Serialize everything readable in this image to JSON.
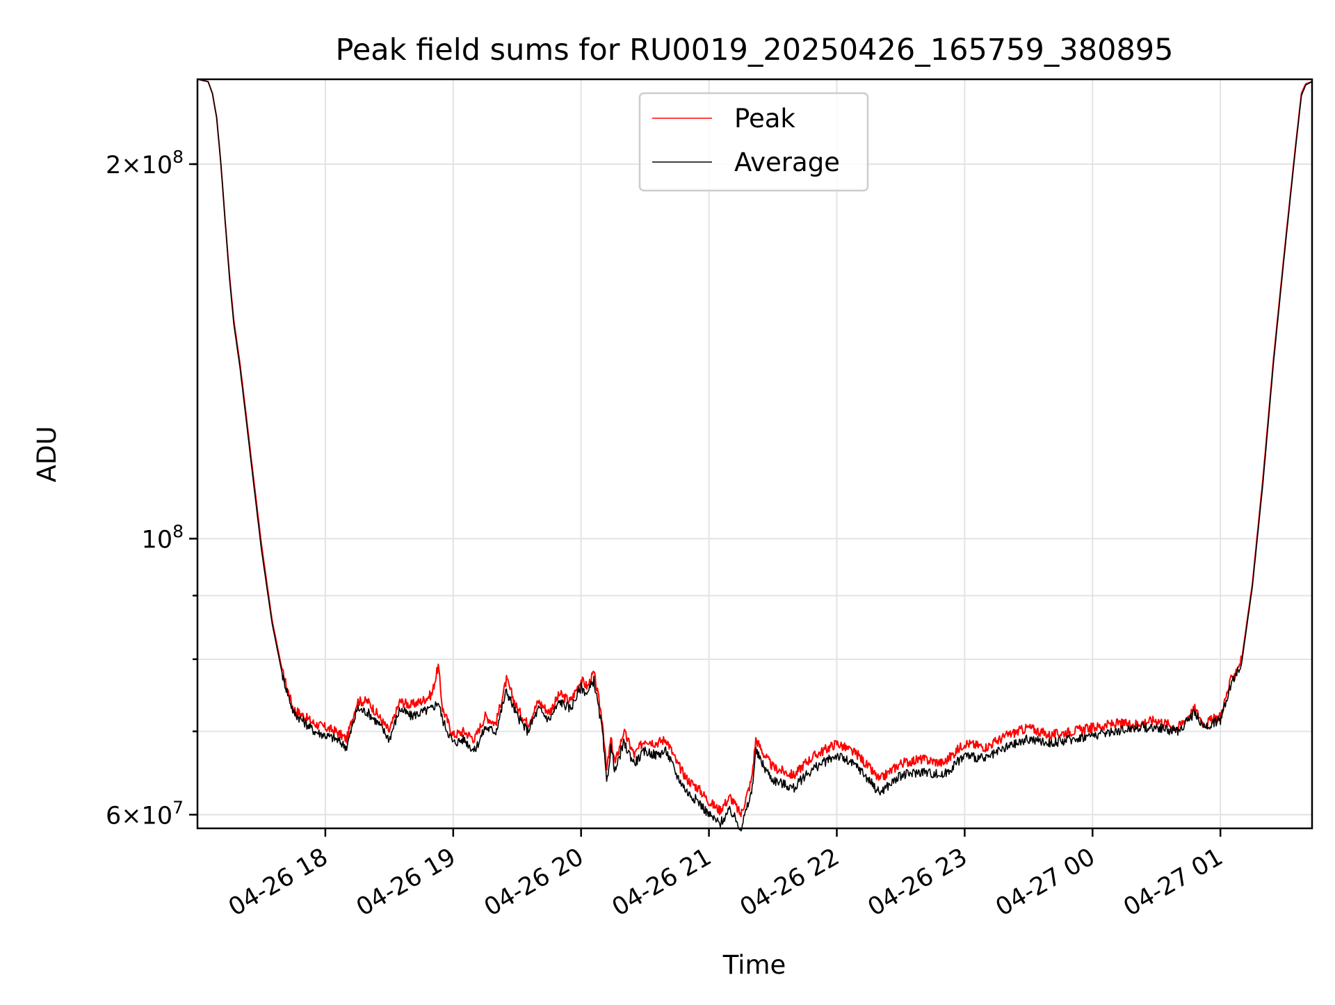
{
  "chart_data": {
    "type": "line",
    "title": "Peak field sums for RU0019_20250426_165759_380895",
    "xlabel": "Time",
    "ylabel": "ADU",
    "x_scale": "time",
    "y_scale": "log",
    "xlim": [
      "2025-04-26 17:00",
      "2025-04-27 01:43"
    ],
    "ylim": [
      58500000,
      234000000
    ],
    "grid": true,
    "legend_position": "upper center",
    "x_ticks": [
      {
        "label": "04-26 18",
        "time": "2025-04-26 18:00"
      },
      {
        "label": "04-26 19",
        "time": "2025-04-26 19:00"
      },
      {
        "label": "04-26 20",
        "time": "2025-04-26 20:00"
      },
      {
        "label": "04-26 21",
        "time": "2025-04-26 21:00"
      },
      {
        "label": "04-26 22",
        "time": "2025-04-26 22:00"
      },
      {
        "label": "04-26 23",
        "time": "2025-04-26 23:00"
      },
      {
        "label": "04-27 00",
        "time": "2025-04-27 00:00"
      },
      {
        "label": "04-27 01",
        "time": "2025-04-27 01:00"
      }
    ],
    "y_major_ticks": [
      {
        "value": 60000000,
        "mantissa": "6",
        "exponent": "7"
      },
      {
        "value": 100000000,
        "mantissa": "",
        "exponent": "8"
      },
      {
        "value": 200000000,
        "mantissa": "2",
        "exponent": "8"
      }
    ],
    "y_minor_ticks": [
      60000000,
      70000000,
      80000000,
      90000000,
      200000000
    ],
    "series": [
      {
        "name": "Peak",
        "color": "#ff0000",
        "x": [
          "2025-04-26 17:00",
          "2025-04-26 17:05",
          "2025-04-26 17:07",
          "2025-04-26 17:09",
          "2025-04-26 17:11",
          "2025-04-26 17:13",
          "2025-04-26 17:15",
          "2025-04-26 17:17",
          "2025-04-26 17:20",
          "2025-04-26 17:23",
          "2025-04-26 17:26",
          "2025-04-26 17:30",
          "2025-04-26 17:35",
          "2025-04-26 17:40",
          "2025-04-26 17:45",
          "2025-04-26 17:55",
          "2025-04-26 18:05",
          "2025-04-26 18:10",
          "2025-04-26 18:15",
          "2025-04-26 18:20",
          "2025-04-26 18:25",
          "2025-04-26 18:30",
          "2025-04-26 18:35",
          "2025-04-26 18:40",
          "2025-04-26 18:45",
          "2025-04-26 18:50",
          "2025-04-26 18:53",
          "2025-04-26 18:55",
          "2025-04-26 19:00",
          "2025-04-26 19:05",
          "2025-04-26 19:10",
          "2025-04-26 19:15",
          "2025-04-26 19:20",
          "2025-04-26 19:25",
          "2025-04-26 19:30",
          "2025-04-26 19:35",
          "2025-04-26 19:40",
          "2025-04-26 19:45",
          "2025-04-26 19:50",
          "2025-04-26 19:55",
          "2025-04-26 20:00",
          "2025-04-26 20:03",
          "2025-04-26 20:06",
          "2025-04-26 20:10",
          "2025-04-26 20:12",
          "2025-04-26 20:14",
          "2025-04-26 20:16",
          "2025-04-26 20:20",
          "2025-04-26 20:25",
          "2025-04-26 20:30",
          "2025-04-26 20:35",
          "2025-04-26 20:40",
          "2025-04-26 20:45",
          "2025-04-26 20:50",
          "2025-04-26 20:55",
          "2025-04-26 21:00",
          "2025-04-26 21:05",
          "2025-04-26 21:10",
          "2025-04-26 21:15",
          "2025-04-26 21:20",
          "2025-04-26 21:22",
          "2025-04-26 21:26",
          "2025-04-26 21:30",
          "2025-04-26 21:35",
          "2025-04-26 21:40",
          "2025-04-26 21:45",
          "2025-04-26 21:50",
          "2025-04-26 22:00",
          "2025-04-26 22:10",
          "2025-04-26 22:20",
          "2025-04-26 22:30",
          "2025-04-26 22:40",
          "2025-04-26 22:50",
          "2025-04-26 23:00",
          "2025-04-26 23:10",
          "2025-04-26 23:20",
          "2025-04-26 23:30",
          "2025-04-26 23:40",
          "2025-04-26 23:50",
          "2025-04-27 00:00",
          "2025-04-27 00:10",
          "2025-04-27 00:20",
          "2025-04-27 00:30",
          "2025-04-27 00:40",
          "2025-04-27 00:48",
          "2025-04-27 00:52",
          "2025-04-27 01:00",
          "2025-04-27 01:05",
          "2025-04-27 01:10",
          "2025-04-27 01:15",
          "2025-04-27 01:20",
          "2025-04-27 01:25",
          "2025-04-27 01:30",
          "2025-04-27 01:35",
          "2025-04-27 01:38",
          "2025-04-27 01:40",
          "2025-04-27 01:43"
        ],
        "y": [
          234000000,
          233000000,
          228000000,
          218000000,
          200000000,
          180000000,
          163000000,
          150000000,
          138000000,
          125000000,
          113000000,
          99000000,
          86000000,
          78000000,
          73000000,
          71000000,
          70000000,
          69000000,
          74000000,
          74000000,
          72000000,
          70000000,
          74000000,
          73500000,
          74000000,
          75000000,
          79000000,
          73000000,
          69500000,
          70000000,
          69000000,
          72000000,
          71000000,
          77000000,
          73000000,
          71000000,
          74000000,
          72500000,
          75000000,
          74000000,
          77000000,
          76000000,
          78000000,
          71500000,
          65000000,
          69000000,
          66000000,
          70000000,
          67000000,
          69000000,
          68500000,
          69000000,
          66000000,
          64000000,
          63000000,
          61500000,
          60500000,
          62000000,
          60000000,
          64000000,
          69000000,
          67000000,
          65500000,
          65000000,
          64500000,
          66000000,
          67000000,
          68500000,
          67000000,
          64000000,
          66000000,
          66500000,
          66000000,
          68500000,
          68000000,
          69500000,
          70500000,
          69500000,
          70000000,
          70500000,
          71000000,
          71000000,
          71500000,
          70500000,
          73000000,
          71000000,
          72000000,
          77000000,
          80000000,
          92000000,
          112000000,
          140000000,
          170000000,
          205000000,
          228000000,
          232000000,
          233000000
        ]
      },
      {
        "name": "Average",
        "color": "#000000",
        "x": [
          "2025-04-26 17:00",
          "2025-04-26 17:05",
          "2025-04-26 17:07",
          "2025-04-26 17:09",
          "2025-04-26 17:11",
          "2025-04-26 17:13",
          "2025-04-26 17:15",
          "2025-04-26 17:17",
          "2025-04-26 17:20",
          "2025-04-26 17:23",
          "2025-04-26 17:26",
          "2025-04-26 17:30",
          "2025-04-26 17:35",
          "2025-04-26 17:40",
          "2025-04-26 17:45",
          "2025-04-26 17:55",
          "2025-04-26 18:05",
          "2025-04-26 18:10",
          "2025-04-26 18:15",
          "2025-04-26 18:20",
          "2025-04-26 18:25",
          "2025-04-26 18:30",
          "2025-04-26 18:35",
          "2025-04-26 18:40",
          "2025-04-26 18:45",
          "2025-04-26 18:50",
          "2025-04-26 18:53",
          "2025-04-26 18:55",
          "2025-04-26 19:00",
          "2025-04-26 19:05",
          "2025-04-26 19:10",
          "2025-04-26 19:15",
          "2025-04-26 19:20",
          "2025-04-26 19:25",
          "2025-04-26 19:30",
          "2025-04-26 19:35",
          "2025-04-26 19:40",
          "2025-04-26 19:45",
          "2025-04-26 19:50",
          "2025-04-26 19:55",
          "2025-04-26 20:00",
          "2025-04-26 20:03",
          "2025-04-26 20:06",
          "2025-04-26 20:10",
          "2025-04-26 20:12",
          "2025-04-26 20:14",
          "2025-04-26 20:16",
          "2025-04-26 20:20",
          "2025-04-26 20:25",
          "2025-04-26 20:30",
          "2025-04-26 20:35",
          "2025-04-26 20:40",
          "2025-04-26 20:45",
          "2025-04-26 20:50",
          "2025-04-26 20:55",
          "2025-04-26 21:00",
          "2025-04-26 21:05",
          "2025-04-26 21:10",
          "2025-04-26 21:15",
          "2025-04-26 21:20",
          "2025-04-26 21:22",
          "2025-04-26 21:26",
          "2025-04-26 21:30",
          "2025-04-26 21:35",
          "2025-04-26 21:40",
          "2025-04-26 21:45",
          "2025-04-26 21:50",
          "2025-04-26 22:00",
          "2025-04-26 22:10",
          "2025-04-26 22:20",
          "2025-04-26 22:30",
          "2025-04-26 22:40",
          "2025-04-26 22:50",
          "2025-04-26 23:00",
          "2025-04-26 23:10",
          "2025-04-26 23:20",
          "2025-04-26 23:30",
          "2025-04-26 23:40",
          "2025-04-26 23:50",
          "2025-04-27 00:00",
          "2025-04-27 00:10",
          "2025-04-27 00:20",
          "2025-04-27 00:30",
          "2025-04-27 00:40",
          "2025-04-27 00:48",
          "2025-04-27 00:52",
          "2025-04-27 01:00",
          "2025-04-27 01:05",
          "2025-04-27 01:10",
          "2025-04-27 01:15",
          "2025-04-27 01:20",
          "2025-04-27 01:25",
          "2025-04-27 01:30",
          "2025-04-27 01:35",
          "2025-04-27 01:38",
          "2025-04-27 01:40",
          "2025-04-27 01:43"
        ],
        "y": [
          234000000,
          233000000,
          228000000,
          218000000,
          200000000,
          180000000,
          162000000,
          149000000,
          137000000,
          124000000,
          112000000,
          98000000,
          85500000,
          77500000,
          72500000,
          70000000,
          69000000,
          68000000,
          73000000,
          72500000,
          71000000,
          69000000,
          73000000,
          72000000,
          72500000,
          73000000,
          74000000,
          71500000,
          68500000,
          69000000,
          67500000,
          70500000,
          70000000,
          75500000,
          72000000,
          70000000,
          73000000,
          71500000,
          74000000,
          73000000,
          76000000,
          75000000,
          77000000,
          70000000,
          63500000,
          68000000,
          65000000,
          68500000,
          66000000,
          67500000,
          67000000,
          67500000,
          64500000,
          62500000,
          61500000,
          60000000,
          59000000,
          60500000,
          58500000,
          62500000,
          67500000,
          65500000,
          64000000,
          63500000,
          63000000,
          64500000,
          65500000,
          67000000,
          65500000,
          62500000,
          64500000,
          65000000,
          64500000,
          67000000,
          66500000,
          68000000,
          69000000,
          68500000,
          69000000,
          69500000,
          70000000,
          70500000,
          70500000,
          70000000,
          72500000,
          70500000,
          71500000,
          76500000,
          79500000,
          91500000,
          111000000,
          139000000,
          169000000,
          204000000,
          227000000,
          231500000,
          233000000
        ]
      }
    ]
  }
}
